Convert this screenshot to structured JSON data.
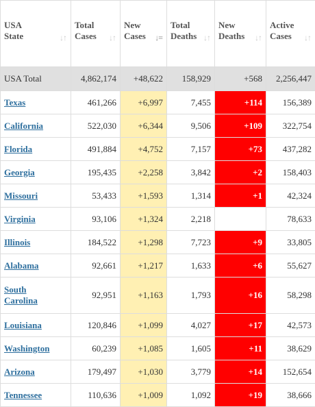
{
  "columns": [
    {
      "label_line1": "USA",
      "label_line2": "State",
      "sort_icon": "sort-both-icon",
      "sorted": false
    },
    {
      "label_line1": "Total",
      "label_line2": "Cases",
      "sort_icon": "sort-both-icon",
      "sorted": false
    },
    {
      "label_line1": "New",
      "label_line2": "Cases",
      "sort_icon": "sort-desc-icon",
      "sorted": true
    },
    {
      "label_line1": "Total",
      "label_line2": "Deaths",
      "sort_icon": "sort-both-icon",
      "sorted": false
    },
    {
      "label_line1": "New",
      "label_line2": "Deaths",
      "sort_icon": "sort-both-icon",
      "sorted": false
    },
    {
      "label_line1": "Active",
      "label_line2": "Cases",
      "sort_icon": "sort-both-icon",
      "sorted": false
    }
  ],
  "total_row": {
    "state": "USA Total",
    "total_cases": "4,862,174",
    "new_cases": "+48,622",
    "total_deaths": "158,929",
    "new_deaths": "+568",
    "active_cases": "2,256,447"
  },
  "rows": [
    {
      "state": "Texas",
      "total_cases": "461,266",
      "new_cases": "+6,997",
      "total_deaths": "7,455",
      "new_deaths": "+114",
      "active_cases": "156,389"
    },
    {
      "state": "California",
      "total_cases": "522,030",
      "new_cases": "+6,344",
      "total_deaths": "9,506",
      "new_deaths": "+109",
      "active_cases": "322,754"
    },
    {
      "state": "Florida",
      "total_cases": "491,884",
      "new_cases": "+4,752",
      "total_deaths": "7,157",
      "new_deaths": "+73",
      "active_cases": "437,282"
    },
    {
      "state": "Georgia",
      "total_cases": "195,435",
      "new_cases": "+2,258",
      "total_deaths": "3,842",
      "new_deaths": "+2",
      "active_cases": "158,403"
    },
    {
      "state": "Missouri",
      "total_cases": "53,433",
      "new_cases": "+1,593",
      "total_deaths": "1,314",
      "new_deaths": "+1",
      "active_cases": "42,324"
    },
    {
      "state": "Virginia",
      "total_cases": "93,106",
      "new_cases": "+1,324",
      "total_deaths": "2,218",
      "new_deaths": "",
      "active_cases": "78,633"
    },
    {
      "state": "Illinois",
      "total_cases": "184,522",
      "new_cases": "+1,298",
      "total_deaths": "7,723",
      "new_deaths": "+9",
      "active_cases": "33,805"
    },
    {
      "state": "Alabama",
      "total_cases": "92,661",
      "new_cases": "+1,217",
      "total_deaths": "1,633",
      "new_deaths": "+6",
      "active_cases": "55,627"
    },
    {
      "state": "South Carolina",
      "state_line1": "South",
      "state_line2": "Carolina",
      "total_cases": "92,951",
      "new_cases": "+1,163",
      "total_deaths": "1,793",
      "new_deaths": "+16",
      "active_cases": "58,298"
    },
    {
      "state": "Louisiana",
      "total_cases": "120,846",
      "new_cases": "+1,099",
      "total_deaths": "4,027",
      "new_deaths": "+17",
      "active_cases": "42,573"
    },
    {
      "state": "Washington",
      "total_cases": "60,239",
      "new_cases": "+1,085",
      "total_deaths": "1,605",
      "new_deaths": "+11",
      "active_cases": "38,629"
    },
    {
      "state": "Arizona",
      "total_cases": "179,497",
      "new_cases": "+1,030",
      "total_deaths": "3,779",
      "new_deaths": "+14",
      "active_cases": "152,654"
    },
    {
      "state": "Tennessee",
      "total_cases": "110,636",
      "new_cases": "+1,009",
      "total_deaths": "1,092",
      "new_deaths": "+19",
      "active_cases": "38,666"
    }
  ],
  "colors": {
    "new_cases_bg": "#fff0b3",
    "new_deaths_bg": "#ff0000",
    "link": "#2e6f9e",
    "total_row_bg": "#e0e0e0"
  }
}
